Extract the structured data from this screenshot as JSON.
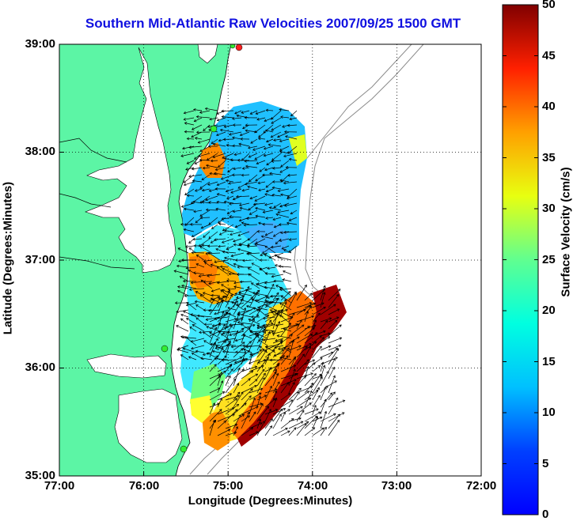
{
  "title": "Southern Mid-Atlantic Raw Velocities 2007/09/25 1500 GMT",
  "x_axis": {
    "label": "Longitude (Degrees:Minutes)",
    "ticks": [
      "77:00",
      "76:00",
      "75:00",
      "74:00",
      "73:00",
      "72:00"
    ]
  },
  "y_axis": {
    "label": "Latitude (Degrees:Minutes)",
    "ticks": [
      "39:00",
      "38:00",
      "37:00",
      "36:00",
      "35:00"
    ]
  },
  "colorbar": {
    "label": "Surface Velocity (cm/s)",
    "ticks": [
      "0",
      "5",
      "10",
      "15",
      "20",
      "25",
      "30",
      "35",
      "40",
      "45",
      "50"
    ],
    "min": 0,
    "max": 50,
    "colormap": "jet"
  },
  "colors": {
    "land": "#5cf5a5",
    "title": "#1010e0",
    "station_marker": "#33ee33",
    "station_marker_active": "#ff2020"
  },
  "map_extent": {
    "lon": [
      -77.0,
      -72.0
    ],
    "lat": [
      35.0,
      39.0
    ]
  }
}
